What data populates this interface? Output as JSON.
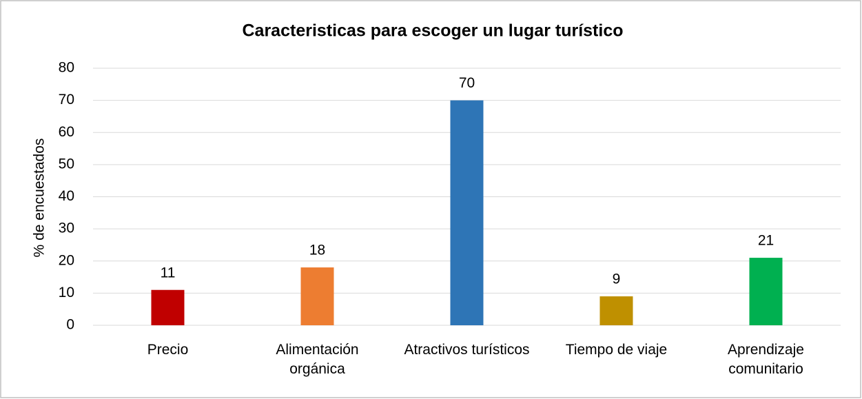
{
  "chart_data": {
    "type": "bar",
    "title": "Caracteristicas para escoger un lugar turístico",
    "ylabel": "% de encuestados",
    "categories": [
      "Precio",
      "Alimentación orgánica",
      "Atractivos turísticos",
      "Tiempo de viaje",
      "Aprendizaje comunitario"
    ],
    "values": [
      11,
      18,
      70,
      9,
      21
    ],
    "colors": [
      "#c00000",
      "#ed7d31",
      "#2e75b6",
      "#bf9000",
      "#00b050"
    ],
    "ylim": [
      0,
      80
    ],
    "yticks": [
      0,
      10,
      20,
      30,
      40,
      50,
      60,
      70,
      80
    ],
    "grid": true
  }
}
